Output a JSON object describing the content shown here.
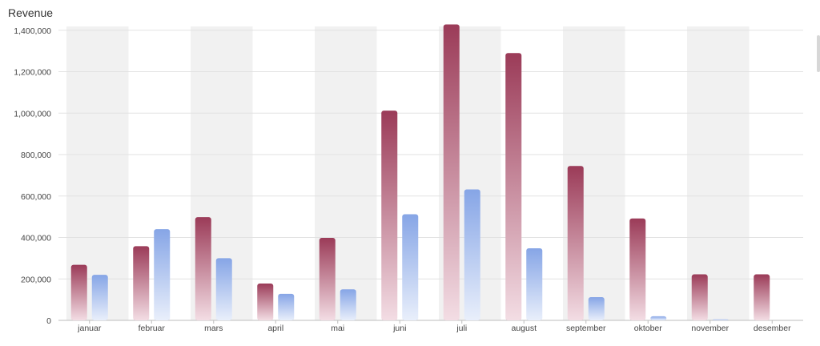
{
  "chart_data": {
    "type": "bar",
    "title": "Revenue",
    "xlabel": "",
    "ylabel": "",
    "ylim": [
      0,
      1430000
    ],
    "yticks": [
      0,
      200000,
      400000,
      600000,
      800000,
      1000000,
      1200000,
      1400000
    ],
    "ytick_labels": [
      "0",
      "200,000",
      "400,000",
      "600,000",
      "800,000",
      "1,000,000",
      "1,200,000",
      "1,400,000"
    ],
    "categories": [
      "januar",
      "februar",
      "mars",
      "april",
      "mai",
      "juni",
      "juli",
      "august",
      "september",
      "oktober",
      "november",
      "desember"
    ],
    "series": [
      {
        "values": [
          268000,
          358000,
          498000,
          178000,
          398000,
          1012000,
          1428000,
          1290000,
          745000,
          492000,
          222000,
          222000
        ],
        "color_top": "#9b3b58",
        "color_bottom": "#f3dde4"
      },
      {
        "values": [
          220000,
          440000,
          300000,
          128000,
          150000,
          512000,
          632000,
          348000,
          112000,
          20000,
          5000,
          0
        ],
        "color_top": "#86a5e6",
        "color_bottom": "#e9effb"
      }
    ],
    "grid": true,
    "legend": "none",
    "band_color": "#f1f1f1"
  }
}
